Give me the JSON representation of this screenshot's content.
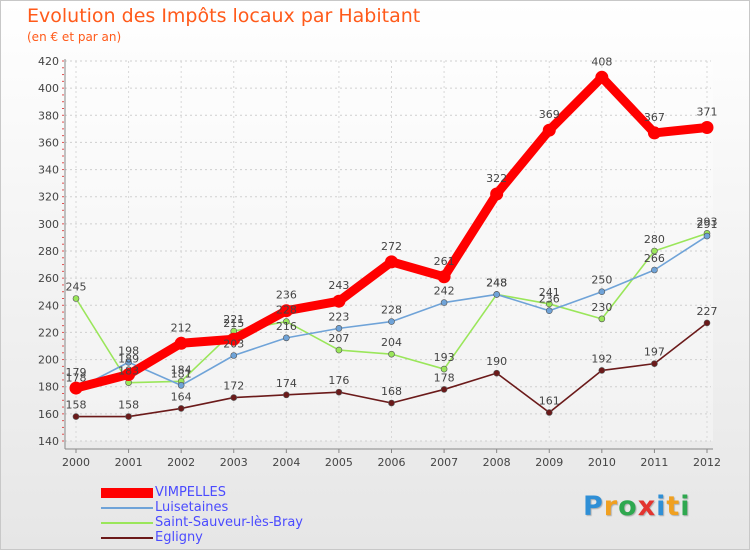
{
  "title": "Evolution des Impôts locaux par Habitant",
  "subtitle": "(en € et par an)",
  "logo": {
    "text": "Proxiti",
    "letters": [
      {
        "ch": "P",
        "color": "#2f8fd6"
      },
      {
        "ch": "r",
        "color": "#f0a020"
      },
      {
        "ch": "o",
        "color": "#2fa84f"
      },
      {
        "ch": "x",
        "color": "#e3342f"
      },
      {
        "ch": "i",
        "color": "#2f8fd6"
      },
      {
        "ch": "t",
        "color": "#f0a020"
      },
      {
        "ch": "i",
        "color": "#2fa84f"
      }
    ]
  },
  "chart_data": {
    "type": "line",
    "title": "Evolution des Impôts locaux par Habitant",
    "subtitle": "(en € et par an)",
    "categories": [
      "2000",
      "2001",
      "2002",
      "2003",
      "2004",
      "2005",
      "2006",
      "2007",
      "2008",
      "2009",
      "2010",
      "2011",
      "2012"
    ],
    "ylim": [
      140,
      420
    ],
    "yticks": [
      "140",
      "160",
      "180",
      "200",
      "220",
      "240",
      "260",
      "280",
      "300",
      "320",
      "340",
      "360",
      "380",
      "400",
      "420"
    ],
    "grid": true,
    "legend_position": "bottom-left",
    "series": [
      {
        "name": "Egligny",
        "color": "#6b1a1a",
        "values": [
          158,
          158,
          164,
          172,
          174,
          176,
          168,
          178,
          190,
          161,
          192,
          197,
          227
        ]
      },
      {
        "name": "Saint-Sauveur-lès-Bray",
        "color": "#9ae65a",
        "values": [
          245,
          183,
          184,
          221,
          228,
          207,
          204,
          193,
          248,
          241,
          230,
          280,
          293
        ]
      },
      {
        "name": "Luisetaines",
        "color": "#6fa3d8",
        "values": [
          178,
          198,
          181,
          203,
          216,
          223,
          228,
          242,
          248,
          236,
          250,
          266,
          291
        ]
      },
      {
        "name": "VIMPELLES",
        "color": "#ff0000",
        "values": [
          179,
          189,
          212,
          215,
          236,
          243,
          272,
          261,
          322,
          369,
          408,
          367,
          371
        ]
      }
    ],
    "labels": {
      "Egligny": [
        "158",
        "158",
        "164",
        "172",
        "174",
        "176",
        "168",
        "178",
        "190",
        "161",
        "192",
        "197",
        "227"
      ],
      "Saint-Sauveur-lès-Bray": [
        "245",
        "183",
        "184",
        "221",
        "228",
        "207",
        "204",
        "193",
        "248",
        "241",
        "230",
        "280",
        "293"
      ],
      "Luisetaines": [
        "178",
        "198",
        "181",
        "203",
        "216",
        "223",
        "228",
        "242",
        "248",
        "236",
        "250",
        "266",
        "291"
      ],
      "VIMPELLES": [
        "179",
        "189",
        "212",
        "215",
        "236",
        "243",
        "272",
        "261",
        "322",
        "369",
        "408",
        "367",
        "371"
      ]
    }
  },
  "legend": {
    "items": [
      {
        "label": "VIMPELLES",
        "color": "#ff0000",
        "thickness": 10
      },
      {
        "label": "Luisetaines",
        "color": "#6fa3d8",
        "thickness": 2
      },
      {
        "label": "Saint-Sauveur-lès-Bray",
        "color": "#9ae65a",
        "thickness": 2
      },
      {
        "label": "Egligny",
        "color": "#6b1a1a",
        "thickness": 2
      }
    ]
  }
}
